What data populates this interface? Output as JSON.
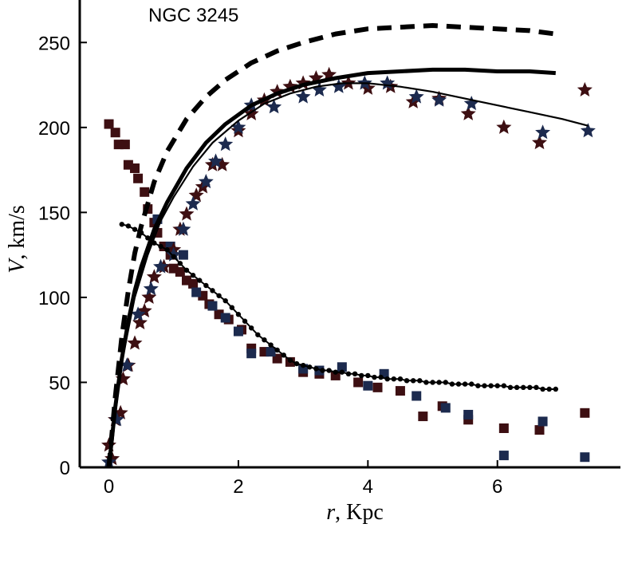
{
  "chart_data": {
    "type": "scatter",
    "title": "NGC 3245",
    "xlabel": {
      "var": "r",
      "sep": ",  ",
      "unit": "Kpc"
    },
    "ylabel": {
      "var": "V",
      "sep": ",  ",
      "unit": "km/s"
    },
    "xlim": [
      -0.45,
      7.9
    ],
    "ylim": [
      0,
      275
    ],
    "x_ticks": [
      0,
      2,
      4,
      6
    ],
    "y_ticks": [
      0,
      50,
      100,
      150,
      200,
      250
    ],
    "colors": {
      "axis": "#000000",
      "curve": "#000000",
      "dark_red": "#3d0f12",
      "dark_blue": "#1c2a4e"
    },
    "series": [
      {
        "name": "model-dashed",
        "style": "dashed",
        "x": [
          0,
          0.1,
          0.2,
          0.3,
          0.4,
          0.5,
          0.7,
          0.9,
          1.2,
          1.5,
          1.8,
          2.2,
          2.6,
          3.0,
          3.5,
          4.0,
          4.5,
          5.0,
          5.5,
          6.0,
          6.5,
          6.9
        ],
        "y": [
          0,
          42,
          77,
          104,
          126,
          142,
          168,
          186,
          205,
          218,
          228,
          238,
          245,
          250,
          255,
          258,
          259,
          260,
          259,
          258,
          257,
          255
        ]
      },
      {
        "name": "model-thick",
        "style": "thick",
        "x": [
          0,
          0.1,
          0.2,
          0.3,
          0.4,
          0.5,
          0.7,
          0.9,
          1.2,
          1.5,
          1.8,
          2.2,
          2.6,
          3.0,
          3.5,
          4.0,
          4.5,
          5.0,
          5.5,
          6.0,
          6.5,
          6.9
        ],
        "y": [
          0,
          36,
          64,
          86,
          104,
          118,
          140,
          156,
          176,
          191,
          202,
          213,
          220,
          225,
          229,
          232,
          233,
          234,
          234,
          233,
          233,
          232
        ]
      },
      {
        "name": "model-thin",
        "style": "thin",
        "x": [
          0,
          0.2,
          0.4,
          0.6,
          0.8,
          1.0,
          1.3,
          1.6,
          2.0,
          2.4,
          2.8,
          3.2,
          3.6,
          4.0,
          4.5,
          5.0,
          5.5,
          6.0,
          6.5,
          7.0,
          7.4
        ],
        "y": [
          0,
          62,
          100,
          125,
          145,
          159,
          177,
          191,
          204,
          214,
          220,
          224,
          226,
          226,
          224,
          221,
          217,
          213,
          209,
          205,
          201
        ]
      },
      {
        "name": "dotted-line",
        "style": "dotted",
        "x": [
          0.2,
          0.3,
          0.4,
          0.5,
          0.6,
          0.7,
          0.8,
          0.9,
          1.0,
          1.1,
          1.2,
          1.3,
          1.4,
          1.5,
          1.6,
          1.7,
          1.8,
          1.9,
          2.0,
          2.1,
          2.2,
          2.3,
          2.4,
          2.5,
          2.6,
          2.7,
          2.8,
          2.9,
          3.0,
          3.1,
          3.2,
          3.3,
          3.4,
          3.5,
          3.6,
          3.7,
          3.8,
          3.9,
          4.0,
          4.1,
          4.2,
          4.3,
          4.4,
          4.5,
          4.6,
          4.7,
          4.8,
          4.9,
          5.0,
          5.1,
          5.2,
          5.3,
          5.4,
          5.5,
          5.6,
          5.7,
          5.8,
          5.9,
          6.0,
          6.1,
          6.2,
          6.3,
          6.4,
          6.5,
          6.6,
          6.7,
          6.8,
          6.9
        ],
        "y": [
          143,
          142,
          140,
          138,
          135,
          132,
          130,
          128,
          124,
          120,
          116,
          113,
          110,
          107,
          104,
          101,
          98,
          94,
          90,
          86,
          82,
          78,
          75,
          72,
          69,
          66,
          63,
          61,
          60,
          59,
          58,
          57,
          57,
          56,
          56,
          55,
          55,
          54,
          54,
          53,
          53,
          52,
          52,
          52,
          51,
          51,
          51,
          50,
          50,
          50,
          50,
          49,
          49,
          49,
          49,
          48,
          48,
          48,
          48,
          48,
          47,
          47,
          47,
          47,
          47,
          46,
          46,
          46
        ]
      },
      {
        "name": "stars-dark-red",
        "marker": "star",
        "color": "dark_red",
        "points": [
          [
            0.0,
            13
          ],
          [
            0.05,
            5
          ],
          [
            0.1,
            28
          ],
          [
            0.18,
            32
          ],
          [
            0.22,
            52
          ],
          [
            0.3,
            60
          ],
          [
            0.4,
            73
          ],
          [
            0.48,
            85
          ],
          [
            0.55,
            92
          ],
          [
            0.62,
            100
          ],
          [
            0.7,
            112
          ],
          [
            0.85,
            118
          ],
          [
            1.0,
            128
          ],
          [
            1.1,
            140
          ],
          [
            1.2,
            149
          ],
          [
            1.35,
            160
          ],
          [
            1.45,
            165
          ],
          [
            1.6,
            178
          ],
          [
            1.75,
            178
          ],
          [
            2.0,
            198
          ],
          [
            2.2,
            208
          ],
          [
            2.4,
            216
          ],
          [
            2.6,
            221
          ],
          [
            2.8,
            224
          ],
          [
            3.0,
            226
          ],
          [
            3.2,
            229
          ],
          [
            3.4,
            231
          ],
          [
            3.7,
            226
          ],
          [
            4.0,
            223
          ],
          [
            4.35,
            224
          ],
          [
            4.7,
            215
          ],
          [
            5.1,
            217
          ],
          [
            5.55,
            208
          ],
          [
            6.1,
            200
          ],
          [
            6.65,
            191
          ],
          [
            7.35,
            222
          ]
        ]
      },
      {
        "name": "stars-dark-blue",
        "marker": "star",
        "color": "dark_blue",
        "points": [
          [
            0.0,
            3
          ],
          [
            0.12,
            28
          ],
          [
            0.28,
            60
          ],
          [
            0.45,
            90
          ],
          [
            0.65,
            105
          ],
          [
            0.8,
            118
          ],
          [
            1.0,
            125
          ],
          [
            1.15,
            140
          ],
          [
            1.3,
            155
          ],
          [
            1.5,
            168
          ],
          [
            1.65,
            180
          ],
          [
            1.8,
            190
          ],
          [
            2.0,
            200
          ],
          [
            2.2,
            213
          ],
          [
            2.55,
            212
          ],
          [
            3.0,
            218
          ],
          [
            3.25,
            222
          ],
          [
            3.55,
            224
          ],
          [
            3.95,
            226
          ],
          [
            4.3,
            226
          ],
          [
            4.75,
            218
          ],
          [
            5.1,
            216
          ],
          [
            5.6,
            214
          ],
          [
            6.7,
            197
          ],
          [
            7.4,
            198
          ]
        ]
      },
      {
        "name": "squares-dark-red",
        "marker": "square",
        "color": "dark_red",
        "points": [
          [
            0.0,
            202
          ],
          [
            0.1,
            197
          ],
          [
            0.15,
            190
          ],
          [
            0.25,
            190
          ],
          [
            0.3,
            178
          ],
          [
            0.4,
            176
          ],
          [
            0.45,
            170
          ],
          [
            0.55,
            162
          ],
          [
            0.6,
            152
          ],
          [
            0.7,
            144
          ],
          [
            0.75,
            138
          ],
          [
            0.85,
            130
          ],
          [
            0.95,
            125
          ],
          [
            1.0,
            117
          ],
          [
            1.1,
            115
          ],
          [
            1.2,
            110
          ],
          [
            1.3,
            108
          ],
          [
            1.45,
            101
          ],
          [
            1.55,
            96
          ],
          [
            1.7,
            90
          ],
          [
            1.85,
            87
          ],
          [
            2.05,
            81
          ],
          [
            2.2,
            70
          ],
          [
            2.4,
            68
          ],
          [
            2.6,
            64
          ],
          [
            2.8,
            62
          ],
          [
            3.0,
            56
          ],
          [
            3.25,
            55
          ],
          [
            3.5,
            54
          ],
          [
            3.85,
            50
          ],
          [
            4.15,
            47
          ],
          [
            4.5,
            45
          ],
          [
            4.85,
            30
          ],
          [
            5.15,
            36
          ],
          [
            5.55,
            28
          ],
          [
            6.1,
            23
          ],
          [
            6.65,
            22
          ],
          [
            7.35,
            32
          ]
        ]
      },
      {
        "name": "squares-dark-blue",
        "marker": "square",
        "color": "dark_blue",
        "points": [
          [
            0.75,
            146
          ],
          [
            0.95,
            130
          ],
          [
            1.15,
            125
          ],
          [
            1.35,
            103
          ],
          [
            1.6,
            95
          ],
          [
            1.8,
            88
          ],
          [
            2.0,
            80
          ],
          [
            2.2,
            67
          ],
          [
            2.5,
            68
          ],
          [
            3.0,
            58
          ],
          [
            3.25,
            57
          ],
          [
            3.6,
            59
          ],
          [
            4.0,
            48
          ],
          [
            4.25,
            55
          ],
          [
            4.75,
            42
          ],
          [
            5.2,
            35
          ],
          [
            5.55,
            31
          ],
          [
            6.1,
            7
          ],
          [
            6.7,
            27
          ],
          [
            7.35,
            6
          ]
        ]
      }
    ]
  }
}
